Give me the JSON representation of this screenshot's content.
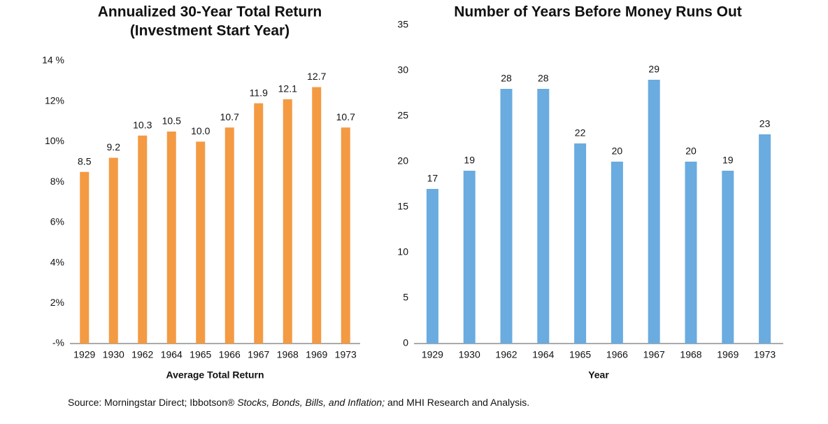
{
  "chart_data": [
    {
      "type": "bar",
      "title": [
        "Annualized 30-Year Total Return",
        "(Investment Start Year)"
      ],
      "xlabel": "Average Total Return",
      "categories": [
        "1929",
        "1930",
        "1962",
        "1964",
        "1965",
        "1966",
        "1967",
        "1968",
        "1969",
        "1973"
      ],
      "values": [
        8.5,
        9.2,
        10.3,
        10.5,
        10.0,
        10.7,
        11.9,
        12.1,
        12.7,
        10.7
      ],
      "value_labels": [
        "8.5",
        "9.2",
        "10.3",
        "10.5",
        "10.0",
        "10.7",
        "11.9",
        "12.1",
        "12.7",
        "10.7"
      ],
      "color": "#f39a43",
      "ylim": [
        0,
        14
      ],
      "yticks": [
        {
          "value": 0,
          "label": "-%"
        },
        {
          "value": 2,
          "label": "2%"
        },
        {
          "value": 4,
          "label": "4%"
        },
        {
          "value": 6,
          "label": "6%"
        },
        {
          "value": 8,
          "label": "8%"
        },
        {
          "value": 10,
          "label": "10%"
        },
        {
          "value": 12,
          "label": "12%"
        },
        {
          "value": 14,
          "label": "14 %"
        }
      ],
      "grid": false
    },
    {
      "type": "bar",
      "title": [
        "Number of Years Before Money Runs Out"
      ],
      "xlabel": "Year",
      "categories": [
        "1929",
        "1930",
        "1962",
        "1964",
        "1965",
        "1966",
        "1967",
        "1968",
        "1969",
        "1973"
      ],
      "values": [
        17,
        19,
        28,
        28,
        22,
        20,
        29,
        20,
        19,
        23
      ],
      "color": "#6aabe0",
      "ylim": [
        0,
        35
      ],
      "yticks": [
        0,
        5,
        10,
        15,
        20,
        25,
        30,
        35
      ],
      "grid": false
    }
  ],
  "source": [
    "Source: Morningstar Direct; Ibbotson® ",
    "Stocks, Bonds, Bills, and Inflation;",
    " and MHI Research and Analysis."
  ]
}
